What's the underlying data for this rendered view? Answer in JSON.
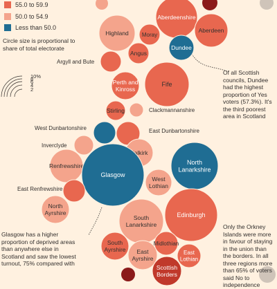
{
  "legend": {
    "items": [
      {
        "label": "55.0 to 59.9",
        "color": "#e8674f"
      },
      {
        "label": "50.0 to 54.9",
        "color": "#f4a48c"
      },
      {
        "label": "Less than 50.0",
        "color": "#1f6d93"
      }
    ]
  },
  "size_note": "Circle size is proportional to share of total electorate",
  "size_scale": [
    "10%",
    "8",
    "6",
    "4",
    "2"
  ],
  "annotations": {
    "dundee": "Of all Scottish councils, Dundee had the highest proportion of Yes voters (57.3%). It's the third poorest area in Scotland",
    "glasgow": "Glasgow has a higher proportion of deprived areas than anywhere else in Scotland and saw the lowest turnout,  75% compared with",
    "orkney": "Only the Orkney Islands were more in favour of staying in the union than the borders. In all three regions more than 65% of voters said No to independence"
  },
  "chart_data": {
    "type": "bubble",
    "size_measure": "share of total electorate",
    "color_measure": "No vote share",
    "categories": [
      {
        "name": "Aberdeenshire",
        "band": "55.0 to 59.9",
        "color": "#e8674f",
        "text_color": "#ffffff"
      },
      {
        "name": "Highland",
        "band": "50.0 to 54.9",
        "color": "#f4a48c",
        "text_color": "#33302e"
      },
      {
        "name": "Moray",
        "band": "55.0 to 59.9",
        "color": "#e8674f",
        "text_color": "#33302e"
      },
      {
        "name": "Aberdeen",
        "band": "55.0 to 59.9",
        "color": "#e8674f",
        "text_color": "#33302e"
      },
      {
        "name": "Dundee",
        "band": "Less than 50.0",
        "color": "#1f6d93",
        "text_color": "#ffffff"
      },
      {
        "name": "Angus",
        "band": "55.0 to 59.9",
        "color": "#e8674f",
        "text_color": "#33302e"
      },
      {
        "name": "Argyll and Bute",
        "band": "55.0 to 59.9",
        "color": "#e8674f",
        "text_color": "#33302e"
      },
      {
        "name": "Perth and Kinross",
        "band": "55.0 to 59.9",
        "color": "#e8674f",
        "text_color": "#ffffff"
      },
      {
        "name": "Fife",
        "band": "55.0 to 59.9",
        "color": "#e8674f",
        "text_color": "#33302e"
      },
      {
        "name": "Stirling",
        "band": "55.0 to 59.9",
        "color": "#e8674f",
        "text_color": "#33302e"
      },
      {
        "name": "Clackmannanshire",
        "band": "50.0 to 54.9",
        "color": "#f4a48c",
        "text_color": "#33302e"
      },
      {
        "name": "West Dunbartonshire",
        "band": "Less than 50.0",
        "color": "#1f6d93",
        "text_color": "#33302e"
      },
      {
        "name": "East Dunbartonshire",
        "band": "55.0 to 59.9",
        "color": "#e8674f",
        "text_color": "#33302e"
      },
      {
        "name": "Inverclyde",
        "band": "50.0 to 54.9",
        "color": "#f4a48c",
        "text_color": "#33302e"
      },
      {
        "name": "Falkirk",
        "band": "50.0 to 54.9",
        "color": "#f4a48c",
        "text_color": "#33302e"
      },
      {
        "name": "North Lanarkshire",
        "band": "Less than 50.0",
        "color": "#1f6d93",
        "text_color": "#ffffff"
      },
      {
        "name": "Renfrewshire",
        "band": "50.0 to 54.9",
        "color": "#f4a48c",
        "text_color": "#33302e"
      },
      {
        "name": "Glasgow",
        "band": "Less than 50.0",
        "color": "#1f6d93",
        "text_color": "#ffffff"
      },
      {
        "name": "West Lothian",
        "band": "50.0 to 54.9",
        "color": "#f4a48c",
        "text_color": "#33302e"
      },
      {
        "name": "East Renfrewshire",
        "band": "55.0 to 59.9",
        "color": "#e8674f",
        "text_color": "#33302e"
      },
      {
        "name": "North Ayrshire",
        "band": "50.0 to 54.9",
        "color": "#f4a48c",
        "text_color": "#33302e"
      },
      {
        "name": "South Lanarkshire",
        "band": "50.0 to 54.9",
        "color": "#f4a48c",
        "text_color": "#33302e"
      },
      {
        "name": "Edinburgh",
        "band": "55.0 to 59.9",
        "color": "#e8674f",
        "text_color": "#ffffff"
      },
      {
        "name": "South Ayrshire",
        "band": "55.0 to 59.9",
        "color": "#e8674f",
        "text_color": "#33302e"
      },
      {
        "name": "Midlothian",
        "band": "55.0 to 59.9",
        "color": "#e8674f",
        "text_color": "#33302e"
      },
      {
        "name": "East Ayrshire",
        "band": "50.0 to 54.9",
        "color": "#f4a48c",
        "text_color": "#33302e"
      },
      {
        "name": "East Lothian",
        "band": "55.0 to 59.9",
        "color": "#e8674f",
        "text_color": "#ffffff"
      },
      {
        "name": "Scottish Borders",
        "band": "",
        "color": "#c0392b",
        "text_color": "#ffffff"
      }
    ]
  }
}
